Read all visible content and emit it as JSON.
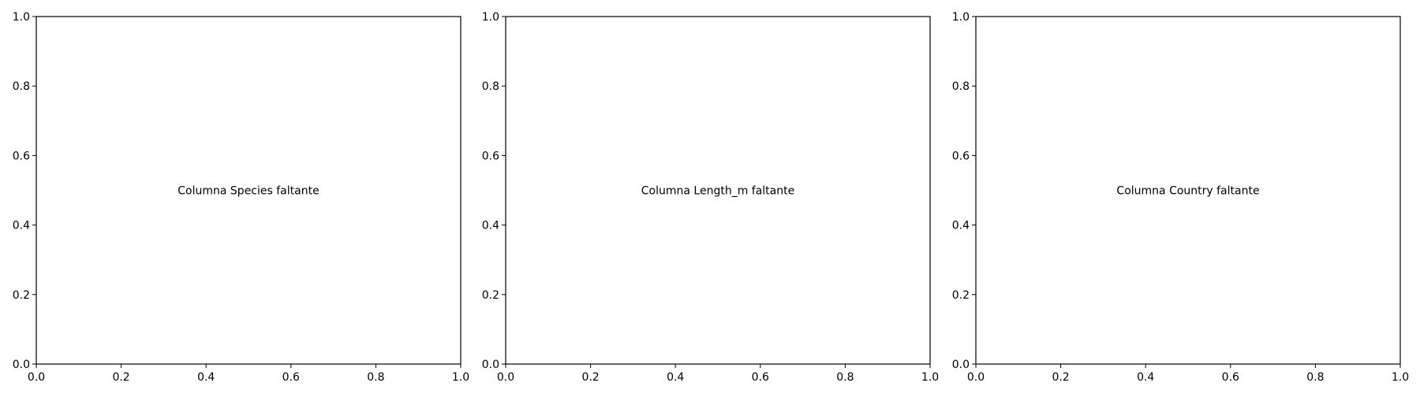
{
  "chart_data": [
    {
      "type": "scatter",
      "title": "",
      "xlabel": "",
      "ylabel": "",
      "xlim": [
        0,
        1
      ],
      "ylim": [
        0,
        1
      ],
      "xticks": [
        "0.0",
        "0.2",
        "0.4",
        "0.6",
        "0.8",
        "1.0"
      ],
      "yticks": [
        "0.0",
        "0.2",
        "0.4",
        "0.6",
        "0.8",
        "1.0"
      ],
      "grid": false,
      "series": [],
      "annotation": "Columna Species faltante"
    },
    {
      "type": "scatter",
      "title": "",
      "xlabel": "",
      "ylabel": "",
      "xlim": [
        0,
        1
      ],
      "ylim": [
        0,
        1
      ],
      "xticks": [
        "0.0",
        "0.2",
        "0.4",
        "0.6",
        "0.8",
        "1.0"
      ],
      "yticks": [
        "0.0",
        "0.2",
        "0.4",
        "0.6",
        "0.8",
        "1.0"
      ],
      "grid": false,
      "series": [],
      "annotation": "Columna Length_m faltante"
    },
    {
      "type": "scatter",
      "title": "",
      "xlabel": "",
      "ylabel": "",
      "xlim": [
        0,
        1
      ],
      "ylim": [
        0,
        1
      ],
      "xticks": [
        "0.0",
        "0.2",
        "0.4",
        "0.6",
        "0.8",
        "1.0"
      ],
      "yticks": [
        "0.0",
        "0.2",
        "0.4",
        "0.6",
        "0.8",
        "1.0"
      ],
      "grid": false,
      "series": [],
      "annotation": "Columna Country faltante"
    }
  ]
}
